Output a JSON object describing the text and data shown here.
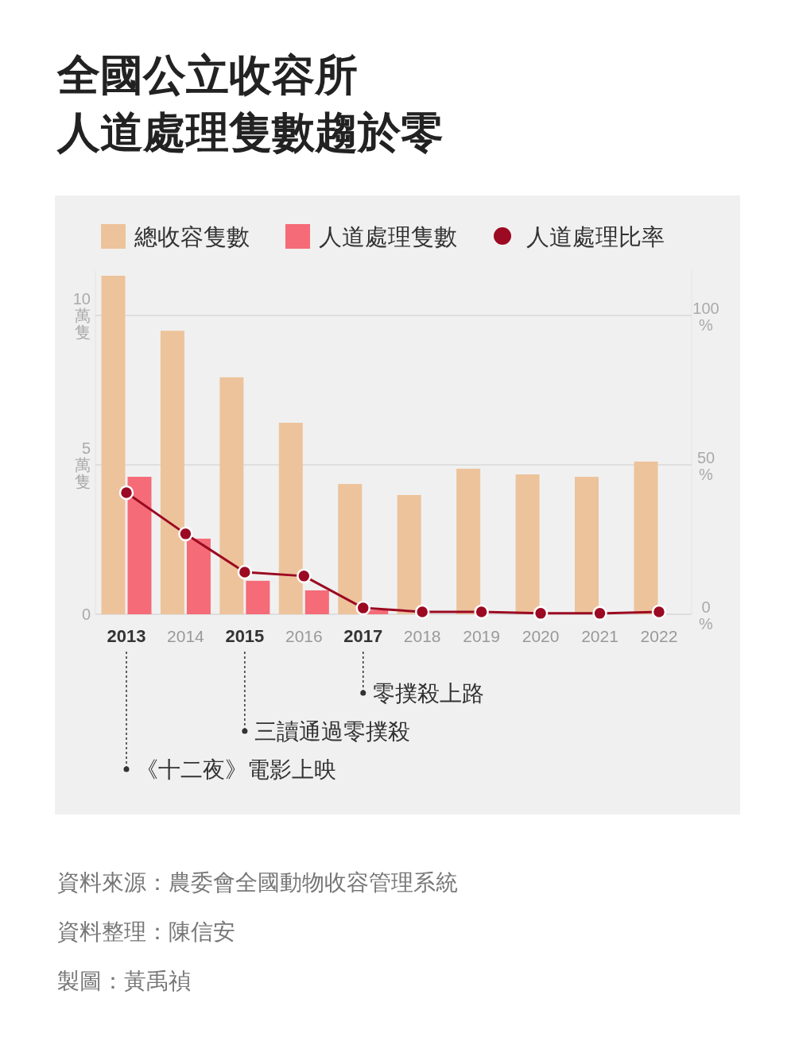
{
  "chart_data": {
    "type": "bar",
    "title": "全國公立收容所人道處理隻數趨於零",
    "categories": [
      "2013",
      "2014",
      "2015",
      "2016",
      "2017",
      "2018",
      "2019",
      "2020",
      "2021",
      "2022"
    ],
    "series": [
      {
        "name": "總收容隻數",
        "color": "#edc39b",
        "values": [
          11.33,
          9.49,
          7.93,
          6.41,
          4.36,
          3.99,
          4.87,
          4.68,
          4.6,
          5.11
        ]
      },
      {
        "name": "人道處理隻數",
        "color": "#f56b77",
        "values": [
          4.6,
          2.53,
          1.12,
          0.8,
          0.14,
          0,
          0,
          0,
          0,
          0
        ]
      },
      {
        "name": "人道處理比率",
        "type": "line",
        "axis": "y2",
        "marker": "circle",
        "color": "#9b0a22",
        "values": [
          40.7,
          26.9,
          14.1,
          12.8,
          2.1,
          0.8,
          0.8,
          0.3,
          0.3,
          0.8
        ]
      }
    ],
    "ylim": [
      0,
      11.5
    ],
    "yticks": [
      0,
      {
        "value": 5,
        "label": "5萬隻"
      },
      {
        "value": 10,
        "label": "10萬隻"
      }
    ],
    "y2lim": [
      0,
      115
    ],
    "y2ticks": [
      {
        "value": 0,
        "label": "0%"
      },
      {
        "value": 50,
        "label": "50%"
      },
      {
        "value": 100,
        "label": "100%"
      }
    ],
    "grid": "y",
    "legend": "top",
    "ref_lines": [
      {
        "axis": "x",
        "value": "2017",
        "label": "零撲殺上路",
        "line_style": "dotted",
        "color": "#333333"
      },
      {
        "axis": "x",
        "value": "2015",
        "label": "三讀通過零撲殺",
        "line_style": "dotted",
        "color": "#333333"
      },
      {
        "axis": "x",
        "value": "2013",
        "label": "《十二夜》電影上映",
        "line_style": "dotted",
        "color": "#333333"
      }
    ],
    "annotations": [
      "資料來源：農委會全國動物收容管理系統",
      "資料整理：陳信安",
      "製圖：黃禹禎"
    ]
  }
}
